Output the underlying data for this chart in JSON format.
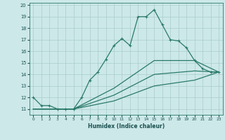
{
  "xlabel": "Humidex (Indice chaleur)",
  "bg_color": "#cce8e8",
  "line_color": "#2a7a6a",
  "grid_color": "#aacccc",
  "xlim": [
    -0.5,
    23.5
  ],
  "ylim": [
    10.5,
    20.2
  ],
  "xticks": [
    0,
    1,
    2,
    3,
    4,
    5,
    6,
    7,
    8,
    9,
    10,
    11,
    12,
    13,
    14,
    15,
    16,
    17,
    18,
    19,
    20,
    21,
    22,
    23
  ],
  "yticks": [
    11,
    12,
    13,
    14,
    15,
    16,
    17,
    18,
    19,
    20
  ],
  "series": [
    {
      "x": [
        0,
        1,
        2,
        3,
        4,
        5,
        6,
        7,
        8,
        9,
        10,
        11,
        12,
        13,
        14,
        15,
        16,
        17,
        18,
        19,
        20,
        21,
        22,
        23
      ],
      "y": [
        12.0,
        11.3,
        11.3,
        11.0,
        11.0,
        11.0,
        12.0,
        13.5,
        14.2,
        15.3,
        16.5,
        17.1,
        16.5,
        19.0,
        19.0,
        19.6,
        18.3,
        17.0,
        16.9,
        16.3,
        15.2,
        14.5,
        14.2,
        14.2
      ],
      "marker": "+"
    },
    {
      "x": [
        0,
        5,
        10,
        15,
        20,
        23
      ],
      "y": [
        11.0,
        11.0,
        12.8,
        15.2,
        15.2,
        14.2
      ],
      "marker": null
    },
    {
      "x": [
        0,
        5,
        10,
        15,
        20,
        23
      ],
      "y": [
        11.0,
        11.0,
        12.2,
        14.0,
        14.3,
        14.2
      ],
      "marker": null
    },
    {
      "x": [
        0,
        5,
        10,
        15,
        20,
        23
      ],
      "y": [
        11.0,
        11.0,
        11.7,
        13.0,
        13.5,
        14.2
      ],
      "marker": null
    }
  ]
}
